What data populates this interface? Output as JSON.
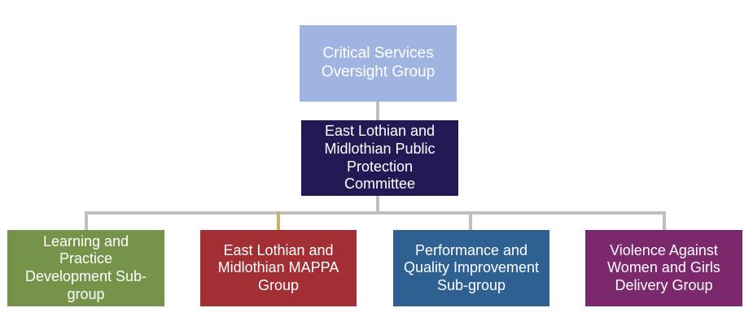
{
  "top": {
    "label": "Critical Services Oversight Group",
    "color": "#9fb4e0"
  },
  "middle": {
    "label": "East Lothian and Midlothian Public Protection Committee",
    "color": "#231a55"
  },
  "groups": [
    {
      "label": "Learning and Practice Development Sub-group",
      "color": "#76934a"
    },
    {
      "label": "East Lothian and Midlothian MAPPA Group",
      "color": "#a12f34"
    },
    {
      "label": "Performance and Quality Improvement Sub-group",
      "color": "#2e6092"
    },
    {
      "label": "Violence Against Women and Girls Delivery Group",
      "color": "#7c286c"
    }
  ],
  "connector_color": "#bfbfbf"
}
